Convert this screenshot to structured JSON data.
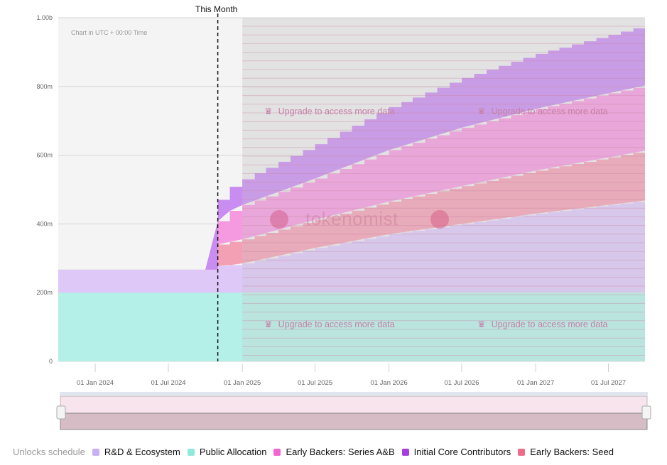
{
  "chart_data": {
    "type": "area",
    "stacked": true,
    "title": "",
    "note": "Chart in UTC + 00:00 Time",
    "marker_label": "This Month",
    "marker_date": "2024-11-01",
    "upgrade_text": "Upgrade to access more data",
    "watermark": "tokenomist",
    "y_ticks": [
      "0",
      "200m",
      "400m",
      "600m",
      "800m",
      "1.00b"
    ],
    "ylim": [
      0,
      1000
    ],
    "x_ticks": [
      "01 Jan 2024",
      "01 Jul 2024",
      "01 Jan 2025",
      "01 Jul 2025",
      "01 Jan 2026",
      "01 Jul 2026",
      "01 Jan 2027",
      "01 Jul 2027"
    ],
    "x_range": [
      "2023-10-01",
      "2027-09-30"
    ],
    "locked_after": "2025-01-01",
    "series": [
      {
        "name": "Public Allocation",
        "color": "#b4f0e8",
        "points": [
          [
            "2023-10-01",
            200
          ],
          [
            "2027-09-30",
            200
          ]
        ]
      },
      {
        "name": "R&D & Ecosystem",
        "color": "#ddc8f8",
        "points": [
          [
            "2023-10-01",
            67
          ],
          [
            "2024-10-20",
            67
          ],
          [
            "2024-11-01",
            78
          ],
          [
            "2024-12-01",
            80
          ],
          [
            "2025-01-01",
            85
          ],
          [
            "2025-07-01",
            130
          ],
          [
            "2026-01-01",
            170
          ],
          [
            "2026-07-01",
            200
          ],
          [
            "2027-01-01",
            230
          ],
          [
            "2027-09-30",
            268
          ]
        ]
      },
      {
        "name": "Early Backers: Seed",
        "color": "#f4a0b4",
        "points": [
          [
            "2023-10-01",
            0
          ],
          [
            "2024-10-20",
            0
          ],
          [
            "2024-10-21",
            55
          ],
          [
            "2024-11-01",
            62
          ],
          [
            "2024-12-01",
            68
          ],
          [
            "2025-01-01",
            70
          ],
          [
            "2025-07-01",
            82
          ],
          [
            "2026-01-01",
            95
          ],
          [
            "2026-07-01",
            110
          ],
          [
            "2027-01-01",
            125
          ],
          [
            "2027-09-30",
            145
          ]
        ]
      },
      {
        "name": "Early Backers: Series A&B",
        "color": "#f59ae0",
        "points": [
          [
            "2023-10-01",
            0
          ],
          [
            "2024-10-20",
            0
          ],
          [
            "2024-10-21",
            65
          ],
          [
            "2024-11-01",
            68
          ],
          [
            "2024-12-01",
            90
          ],
          [
            "2025-01-01",
            100
          ],
          [
            "2025-07-01",
            120
          ],
          [
            "2026-01-01",
            150
          ],
          [
            "2026-07-01",
            170
          ],
          [
            "2027-01-01",
            180
          ],
          [
            "2027-09-30",
            190
          ]
        ]
      },
      {
        "name": "Initial Core Contributors",
        "color": "#c98cf0",
        "points": [
          [
            "2023-10-01",
            0
          ],
          [
            "2024-10-20",
            0
          ],
          [
            "2024-10-21",
            55
          ],
          [
            "2024-11-01",
            62
          ],
          [
            "2024-12-01",
            70
          ],
          [
            "2025-01-01",
            75
          ],
          [
            "2025-07-01",
            100
          ],
          [
            "2026-01-01",
            125
          ],
          [
            "2026-07-01",
            145
          ],
          [
            "2027-01-01",
            160
          ],
          [
            "2027-09-30",
            175
          ]
        ]
      }
    ]
  },
  "legend": {
    "title": "Unlocks schedule",
    "items": [
      {
        "label": "R&D & Ecosystem",
        "color": "#c9b0f5"
      },
      {
        "label": "Public Allocation",
        "color": "#8fe9da"
      },
      {
        "label": "Early Backers: Series A&B",
        "color": "#f266d4"
      },
      {
        "label": "Initial Core Contributors",
        "color": "#a63ee0"
      },
      {
        "label": "Early Backers: Seed",
        "color": "#ee6c8a"
      }
    ]
  }
}
